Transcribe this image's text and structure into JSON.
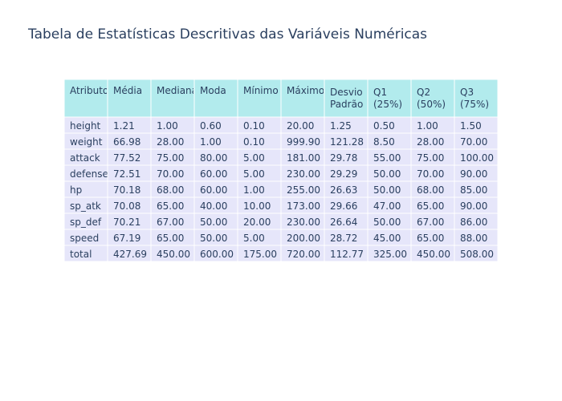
{
  "chart_data": {
    "type": "table",
    "title": "Tabela de Estatísticas Descritivas das Variáveis Numéricas",
    "header": [
      "Atributo",
      "Média",
      "Mediana",
      "Moda",
      "Mínimo",
      "Máximo",
      "Desvio\nPadrão",
      "Q1\n(25%)",
      "Q2\n(50%)",
      "Q3\n(75%)"
    ],
    "rows": [
      [
        "height",
        "1.21",
        "1.00",
        "0.60",
        "0.10",
        "20.00",
        "1.25",
        "0.50",
        "1.00",
        "1.50"
      ],
      [
        "weight",
        "66.98",
        "28.00",
        "1.00",
        "0.10",
        "999.90",
        "121.28",
        "8.50",
        "28.00",
        "70.00"
      ],
      [
        "attack",
        "77.52",
        "75.00",
        "80.00",
        "5.00",
        "181.00",
        "29.78",
        "55.00",
        "75.00",
        "100.00"
      ],
      [
        "defense",
        "72.51",
        "70.00",
        "60.00",
        "5.00",
        "230.00",
        "29.29",
        "50.00",
        "70.00",
        "90.00"
      ],
      [
        "hp",
        "70.18",
        "68.00",
        "60.00",
        "1.00",
        "255.00",
        "26.63",
        "50.00",
        "68.00",
        "85.00"
      ],
      [
        "sp_atk",
        "70.08",
        "65.00",
        "40.00",
        "10.00",
        "173.00",
        "29.66",
        "47.00",
        "65.00",
        "90.00"
      ],
      [
        "sp_def",
        "70.21",
        "67.00",
        "50.00",
        "20.00",
        "230.00",
        "26.64",
        "50.00",
        "67.00",
        "86.00"
      ],
      [
        "speed",
        "67.19",
        "65.00",
        "50.00",
        "5.00",
        "200.00",
        "28.72",
        "45.00",
        "65.00",
        "88.00"
      ],
      [
        "total",
        "427.69",
        "450.00",
        "600.00",
        "175.00",
        "720.00",
        "112.77",
        "325.00",
        "450.00",
        "508.00"
      ]
    ],
    "colors": {
      "header_fill": "#b2ebed",
      "cell_fill": "#e6e6fa",
      "line": "#ffffff",
      "text": "#2a3f5f"
    }
  }
}
